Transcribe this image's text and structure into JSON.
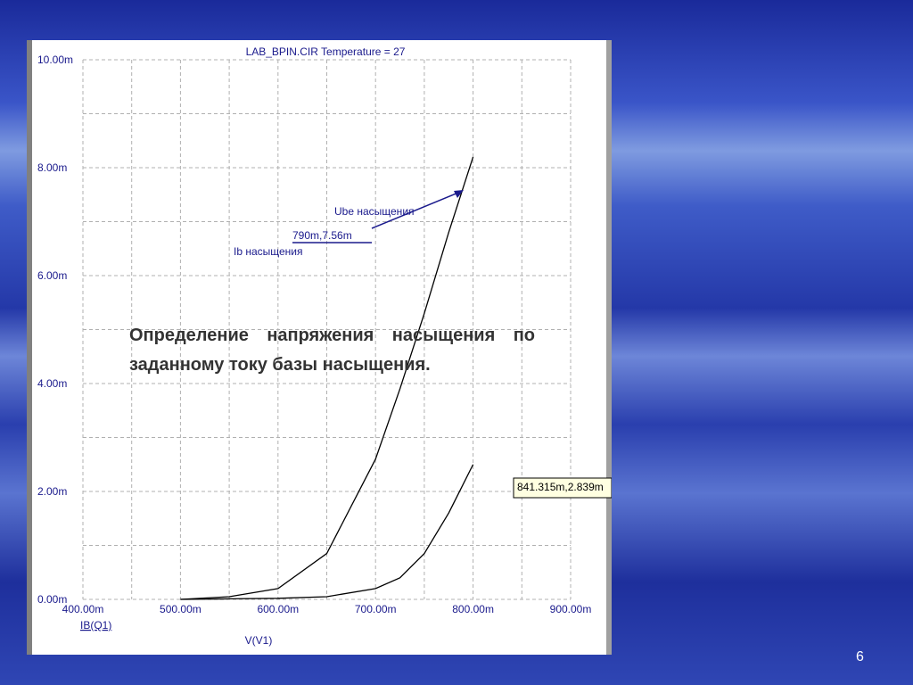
{
  "chart_data": {
    "type": "line",
    "title": "LAB_BPIN.CIR Temperature = 27",
    "xlabel": "V(V1)",
    "ylabel": "IB(Q1)",
    "x": [
      500,
      550,
      600,
      650,
      700,
      725,
      750,
      775,
      800
    ],
    "series": [
      {
        "color": "#000000",
        "values": [
          0,
          0.05,
          0.2,
          0.85,
          2.6,
          3.9,
          5.3,
          6.8,
          8.2
        ]
      },
      {
        "color": "#000000",
        "values": [
          0,
          0.01,
          0.02,
          0.05,
          0.2,
          0.4,
          0.85,
          1.6,
          2.5
        ]
      }
    ],
    "xlim": [
      400,
      900
    ],
    "xticks": [
      {
        "value": 400,
        "label": "400.00m"
      },
      {
        "value": 500,
        "label": "500.00m"
      },
      {
        "value": 600,
        "label": "600.00m"
      },
      {
        "value": 700,
        "label": "700.00m"
      },
      {
        "value": 800,
        "label": "800.00m"
      },
      {
        "value": 900,
        "label": "900.00m"
      }
    ],
    "ylim": [
      0,
      10
    ],
    "yticks": [
      {
        "value": 0,
        "label": "0.00m"
      },
      {
        "value": 2,
        "label": "2.00m"
      },
      {
        "value": 4,
        "label": "4.00m"
      },
      {
        "value": 6,
        "label": "6.00m"
      },
      {
        "value": 8,
        "label": "8.00m"
      },
      {
        "value": 10,
        "label": "10.00m"
      }
    ],
    "grid": true,
    "annotations": [
      "Ube насыщения",
      "790m,7.56m",
      "Ib насыщения",
      "841.315m,2.839m"
    ]
  },
  "slide": {
    "text": "Определение напряжения насыщения по заданному току базы насыщения.",
    "page_number": "6"
  }
}
